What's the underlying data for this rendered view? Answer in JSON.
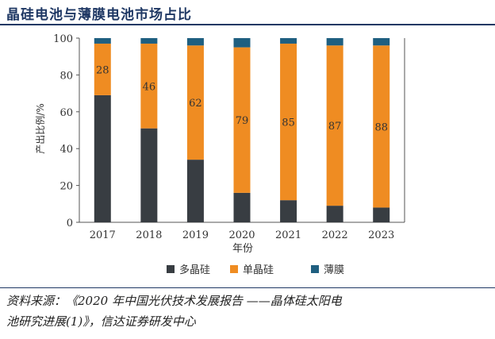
{
  "title": "晶硅电池与薄膜电池市场占比",
  "source_line_1": "资料来源：《2020 年中国光伏技术发展报告 ——晶体硅太阳电",
  "source_line_2": "池研究进展(1)》，信达证券研发中心",
  "colors": {
    "poly": "#383d42",
    "mono": "#ef8c22",
    "film": "#1f5f80",
    "axis": "#555555",
    "text": "#333333",
    "title": "#1f3864"
  },
  "chart_data": {
    "type": "bar",
    "stacked": true,
    "categories": [
      "2017",
      "2018",
      "2019",
      "2020",
      "2021",
      "2022",
      "2023"
    ],
    "series": [
      {
        "name": "多晶硅",
        "values": [
          69,
          51,
          34,
          16,
          12,
          9,
          8
        ]
      },
      {
        "name": "单晶硅",
        "values": [
          28,
          46,
          62,
          79,
          85,
          87,
          88
        ]
      },
      {
        "name": "薄膜",
        "values": [
          3,
          3,
          4,
          5,
          3,
          4,
          4
        ]
      }
    ],
    "labels": [
      "28",
      "46",
      "62",
      "79",
      "85",
      "87",
      "88"
    ],
    "xlabel": "年份",
    "ylabel": "产出比例/%",
    "ylim": [
      0,
      100
    ],
    "yticks": [
      0,
      20,
      40,
      60,
      80,
      100
    ],
    "legend_position": "bottom"
  }
}
